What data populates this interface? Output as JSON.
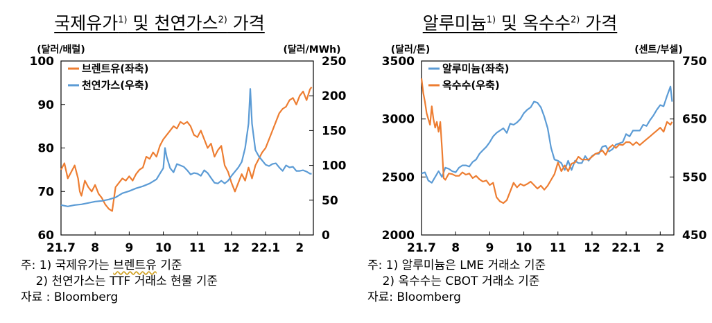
{
  "colors": {
    "orange": "#ED7D31",
    "blue": "#5B9BD5"
  },
  "notes_left": {
    "line1_prefix": "주: 1) 국제유가는 ",
    "line1_word": "브렌트유",
    "line1_suffix": " 기준",
    "line2": "    2) 천연가스는 TTF 거래소 현물 기준",
    "source": "자료 : Bloomberg"
  },
  "notes_right": {
    "line1": "주: 1) 알루미늄은 LME 거래소 기준",
    "line2": "    2) 옥수수는 CBOT 거래소 기준",
    "source": "자료: Bloomberg"
  },
  "chart_data": [
    {
      "type": "line",
      "title": "국제유가 및 천연가스 가격",
      "title_parts": {
        "a": "국제유가",
        "a_sup": "1)",
        "b": " 및 천연가스",
        "b_sup": "2)",
        "c": " 가격"
      },
      "left_unit": "(달러/배럴)",
      "right_unit": "(달러/MWh)",
      "ylim_left": [
        60,
        100
      ],
      "yticks_left": [
        60,
        70,
        80,
        90,
        100
      ],
      "ylim_right": [
        0,
        250
      ],
      "yticks_right": [
        0,
        50,
        100,
        150,
        200,
        250
      ],
      "xlim": [
        0,
        7.4
      ],
      "xticks": [
        {
          "x": 0,
          "label": "21.7"
        },
        {
          "x": 1,
          "label": "8"
        },
        {
          "x": 2,
          "label": "9"
        },
        {
          "x": 3,
          "label": "10"
        },
        {
          "x": 4,
          "label": "11"
        },
        {
          "x": 5,
          "label": "12"
        },
        {
          "x": 6,
          "label": "22.1"
        },
        {
          "x": 7,
          "label": "2"
        }
      ],
      "legend_position": "top-left",
      "series": [
        {
          "name": "브렌트유(좌축)",
          "axis": "left",
          "color": "#ED7D31",
          "x": [
            0,
            0.1,
            0.2,
            0.3,
            0.4,
            0.5,
            0.55,
            0.6,
            0.7,
            0.8,
            0.9,
            1.0,
            1.1,
            1.2,
            1.3,
            1.4,
            1.5,
            1.6,
            1.7,
            1.8,
            1.9,
            2.0,
            2.1,
            2.2,
            2.3,
            2.4,
            2.5,
            2.6,
            2.7,
            2.8,
            2.9,
            3.0,
            3.1,
            3.2,
            3.3,
            3.4,
            3.5,
            3.6,
            3.7,
            3.8,
            3.9,
            4.0,
            4.1,
            4.2,
            4.3,
            4.4,
            4.5,
            4.6,
            4.7,
            4.8,
            4.9,
            5.0,
            5.1,
            5.2,
            5.3,
            5.4,
            5.5,
            5.6,
            5.7,
            5.8,
            5.9,
            6.0,
            6.1,
            6.2,
            6.3,
            6.4,
            6.5,
            6.6,
            6.7,
            6.8,
            6.9,
            7.0,
            7.1,
            7.2,
            7.3,
            7.35
          ],
          "y": [
            75,
            76.5,
            73,
            74.5,
            76,
            73,
            70,
            69,
            72.5,
            71,
            70,
            71.5,
            69.5,
            68.5,
            67,
            66,
            65.5,
            71,
            72,
            73,
            72.5,
            73.5,
            72.5,
            74,
            75,
            75.5,
            78,
            77.5,
            79,
            78,
            80.5,
            82,
            83,
            84,
            85,
            84.5,
            86,
            85.5,
            86,
            85,
            83,
            82.5,
            84,
            82,
            80,
            81,
            78,
            79.5,
            80.5,
            76,
            74.5,
            72,
            70,
            72,
            74,
            72.5,
            75.5,
            73,
            76,
            77.5,
            79,
            80,
            82,
            84,
            86,
            88,
            89,
            89.5,
            91,
            91.5,
            90,
            92,
            93,
            91,
            93.5,
            94
          ]
        },
        {
          "name": "천연가스(우축)",
          "axis": "right",
          "color": "#5B9BD5",
          "x": [
            0,
            0.2,
            0.4,
            0.6,
            0.8,
            1.0,
            1.2,
            1.4,
            1.6,
            1.8,
            2.0,
            2.2,
            2.4,
            2.6,
            2.8,
            2.9,
            3.0,
            3.05,
            3.1,
            3.2,
            3.3,
            3.4,
            3.5,
            3.6,
            3.7,
            3.8,
            3.9,
            4.0,
            4.1,
            4.2,
            4.3,
            4.4,
            4.5,
            4.6,
            4.7,
            4.8,
            4.9,
            5.0,
            5.1,
            5.2,
            5.3,
            5.4,
            5.5,
            5.55,
            5.6,
            5.7,
            5.8,
            5.9,
            6.0,
            6.1,
            6.2,
            6.3,
            6.4,
            6.5,
            6.6,
            6.7,
            6.8,
            6.9,
            7.0,
            7.1,
            7.2,
            7.3,
            7.35
          ],
          "y": [
            43,
            41,
            43,
            44,
            46,
            48,
            49,
            51,
            54,
            60,
            63,
            67,
            70,
            74,
            80,
            88,
            96,
            125,
            112,
            96,
            90,
            102,
            100,
            98,
            93,
            87,
            89,
            88,
            85,
            93,
            89,
            82,
            75,
            74,
            78,
            74,
            78,
            85,
            91,
            97,
            105,
            125,
            160,
            210,
            160,
            122,
            113,
            107,
            101,
            99,
            102,
            103,
            97,
            92,
            100,
            97,
            98,
            92,
            92,
            93,
            91,
            88,
            88
          ]
        }
      ]
    },
    {
      "type": "line",
      "title": "알루미늄 및 옥수수 가격",
      "title_parts": {
        "a": "알루미늄",
        "a_sup": "1)",
        "b": " 및 옥수수",
        "b_sup": "2)",
        "c": " 가격"
      },
      "left_unit": "(달러/톤)",
      "right_unit": "(센트/부셀)",
      "ylim_left": [
        2000,
        3500
      ],
      "yticks_left": [
        2000,
        2500,
        3000,
        3500
      ],
      "ylim_right": [
        450,
        750
      ],
      "yticks_right": [
        450,
        550,
        650,
        750
      ],
      "xlim": [
        0,
        7.4
      ],
      "xticks": [
        {
          "x": 0,
          "label": "21.7"
        },
        {
          "x": 1,
          "label": "8"
        },
        {
          "x": 2,
          "label": "9"
        },
        {
          "x": 3,
          "label": "10"
        },
        {
          "x": 4,
          "label": "11"
        },
        {
          "x": 5,
          "label": "12"
        },
        {
          "x": 6,
          "label": "22.1"
        },
        {
          "x": 7,
          "label": "2"
        }
      ],
      "legend_position": "top-left",
      "series": [
        {
          "name": "알루미늄(좌축)",
          "axis": "left",
          "color": "#5B9BD5",
          "x": [
            0,
            0.1,
            0.2,
            0.3,
            0.4,
            0.5,
            0.6,
            0.7,
            0.8,
            0.9,
            1.0,
            1.1,
            1.2,
            1.3,
            1.4,
            1.5,
            1.6,
            1.7,
            1.8,
            1.9,
            2.0,
            2.1,
            2.2,
            2.3,
            2.4,
            2.5,
            2.6,
            2.7,
            2.8,
            2.9,
            3.0,
            3.1,
            3.2,
            3.3,
            3.4,
            3.5,
            3.6,
            3.7,
            3.8,
            3.9,
            4.0,
            4.1,
            4.2,
            4.3,
            4.4,
            4.5,
            4.6,
            4.7,
            4.8,
            4.9,
            5.0,
            5.1,
            5.2,
            5.3,
            5.4,
            5.5,
            5.6,
            5.7,
            5.8,
            5.9,
            6.0,
            6.1,
            6.2,
            6.3,
            6.4,
            6.5,
            6.6,
            6.7,
            6.8,
            6.9,
            7.0,
            7.1,
            7.2,
            7.3,
            7.35
          ],
          "y": [
            2530,
            2540,
            2470,
            2450,
            2500,
            2550,
            2500,
            2580,
            2570,
            2550,
            2540,
            2580,
            2600,
            2600,
            2590,
            2630,
            2650,
            2700,
            2730,
            2760,
            2800,
            2850,
            2880,
            2900,
            2920,
            2880,
            2960,
            2950,
            2970,
            3000,
            3050,
            3080,
            3100,
            3150,
            3140,
            3100,
            3020,
            2920,
            2750,
            2650,
            2640,
            2620,
            2560,
            2640,
            2560,
            2640,
            2620,
            2620,
            2680,
            2640,
            2680,
            2700,
            2700,
            2760,
            2770,
            2720,
            2740,
            2780,
            2790,
            2800,
            2870,
            2850,
            2900,
            2900,
            2900,
            2950,
            2940,
            2990,
            3030,
            3080,
            3120,
            3110,
            3200,
            3280,
            3150
          ]
        },
        {
          "name": "옥수수(우축)",
          "axis": "right",
          "color": "#ED7D31",
          "x": [
            0,
            0.05,
            0.1,
            0.15,
            0.2,
            0.25,
            0.3,
            0.35,
            0.4,
            0.45,
            0.5,
            0.55,
            0.6,
            0.65,
            0.7,
            0.8,
            0.9,
            1.0,
            1.1,
            1.2,
            1.3,
            1.4,
            1.5,
            1.6,
            1.7,
            1.8,
            1.9,
            2.0,
            2.1,
            2.2,
            2.3,
            2.4,
            2.5,
            2.6,
            2.7,
            2.8,
            2.9,
            3.0,
            3.1,
            3.2,
            3.3,
            3.4,
            3.5,
            3.6,
            3.7,
            3.8,
            3.9,
            4.0,
            4.1,
            4.2,
            4.3,
            4.4,
            4.5,
            4.6,
            4.7,
            4.8,
            4.9,
            5.0,
            5.1,
            5.2,
            5.3,
            5.4,
            5.5,
            5.6,
            5.7,
            5.8,
            5.9,
            6.0,
            6.1,
            6.2,
            6.3,
            6.4,
            6.5,
            6.6,
            6.7,
            6.8,
            6.9,
            7.0,
            7.1,
            7.2,
            7.3,
            7.35
          ],
          "y": [
            720,
            695,
            680,
            660,
            650,
            640,
            672,
            650,
            635,
            645,
            628,
            645,
            600,
            548,
            545,
            556,
            555,
            552,
            552,
            558,
            554,
            556,
            548,
            552,
            546,
            542,
            544,
            536,
            540,
            515,
            508,
            505,
            510,
            525,
            540,
            532,
            538,
            535,
            538,
            542,
            536,
            530,
            535,
            528,
            535,
            545,
            555,
            575,
            560,
            570,
            560,
            573,
            575,
            585,
            580,
            580,
            580,
            585,
            590,
            592,
            596,
            588,
            600,
            605,
            600,
            606,
            605,
            610,
            610,
            605,
            610,
            605,
            610,
            615,
            620,
            625,
            630,
            635,
            628,
            645,
            640,
            645
          ]
        }
      ]
    }
  ]
}
